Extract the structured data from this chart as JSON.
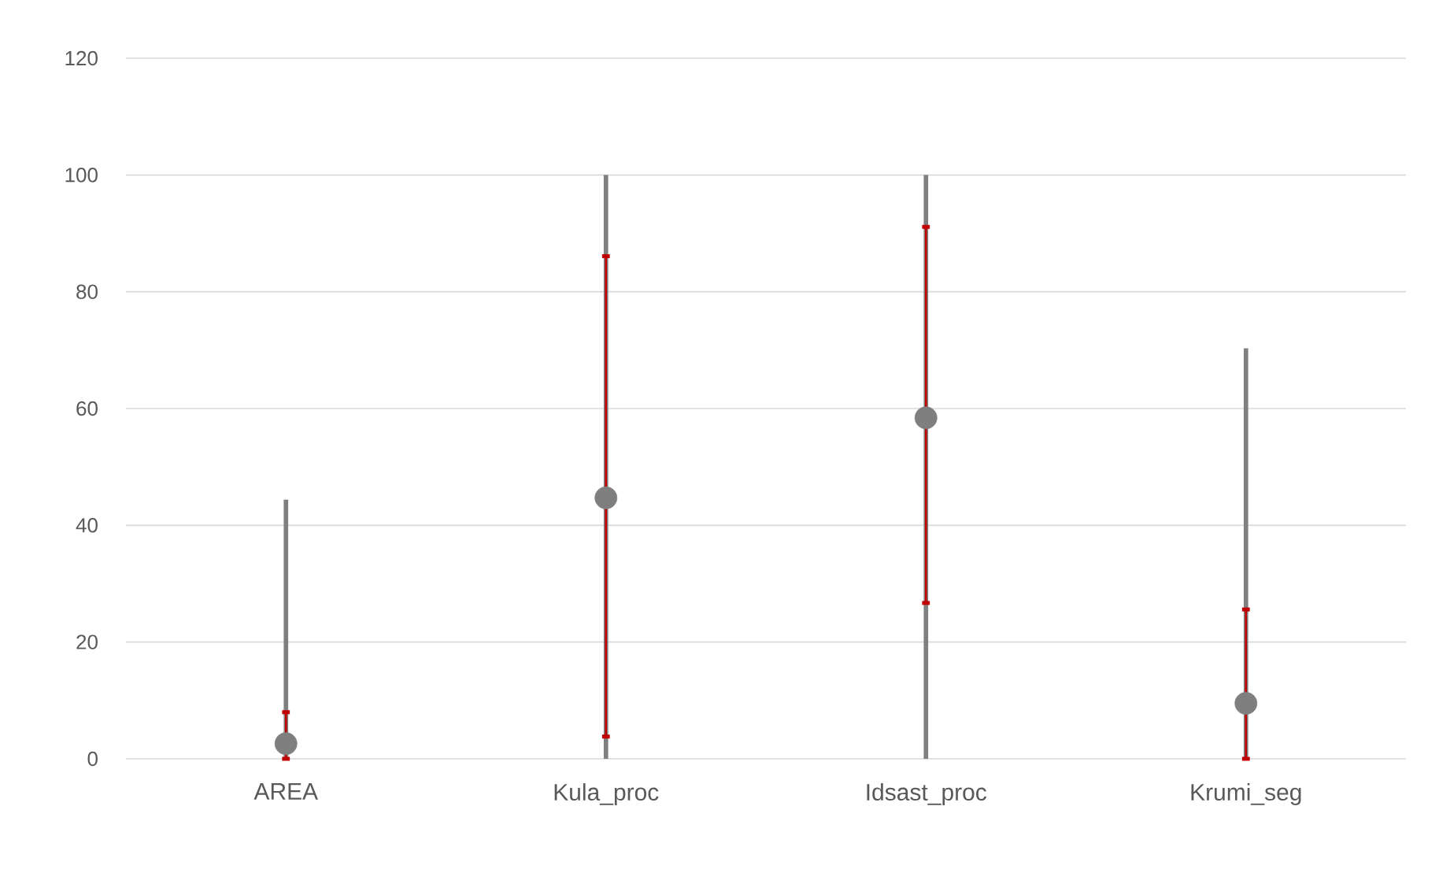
{
  "chart_data": {
    "type": "scatter",
    "categories": [
      "AREA",
      "Kula_proc",
      "Idsast_proc",
      "Krumi_seg"
    ],
    "ylim": [
      0,
      120
    ],
    "yticks": [
      0,
      20,
      40,
      60,
      80,
      100,
      120
    ],
    "grid": "y",
    "series": [
      {
        "type": "bar",
        "color": "#7f7f7f",
        "base": [
          0,
          0,
          0,
          0
        ],
        "values": [
          44.4,
          100,
          100,
          70.3
        ]
      },
      {
        "color": "#7f7f7f",
        "values": [
          2.6,
          44.7,
          58.4,
          9.5
        ],
        "errors": [
          [
            0,
            8
          ],
          [
            3.8,
            86.1
          ],
          [
            26.7,
            91.1
          ],
          [
            0,
            25.6
          ]
        ]
      }
    ]
  }
}
